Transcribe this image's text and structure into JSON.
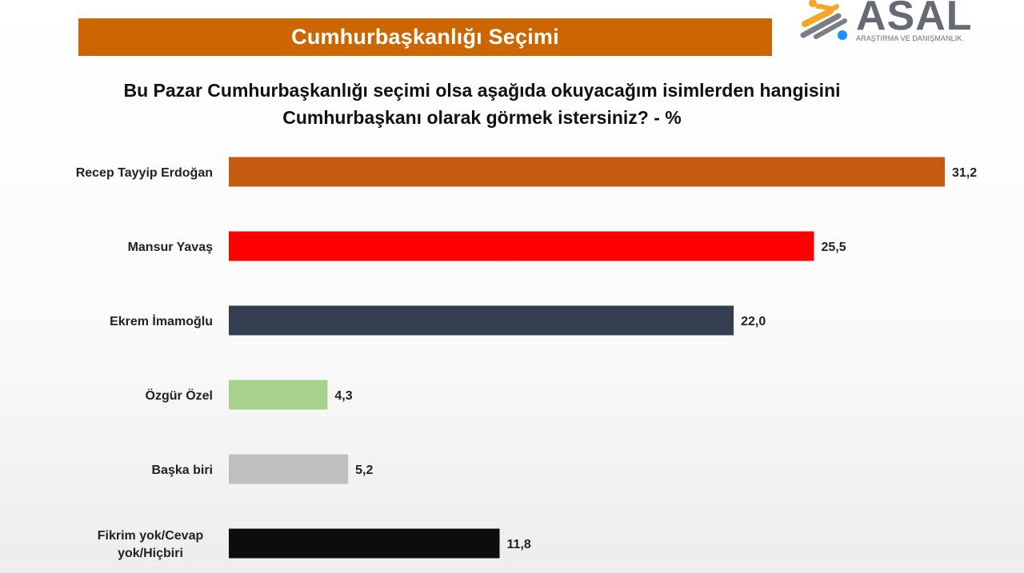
{
  "banner": {
    "title": "Cumhurbaşkanlığı Seçimi"
  },
  "logo": {
    "word": "ASAL",
    "subtitle": "ARAŞTIRMA VE DANIŞMANLIK"
  },
  "question": {
    "line1": "Bu Pazar Cumhurbaşkanlığı seçimi olsa aşağıda okuyacağım isimlerden hangisini",
    "line2": "Cumhurbaşkanı olarak görmek istersiniz? - %"
  },
  "chart_data": {
    "type": "bar",
    "orientation": "horizontal",
    "categories": [
      [
        "Recep Tayyip Erdoğan"
      ],
      [
        "Mansur Yavaş"
      ],
      [
        "Ekrem İmamoğlu"
      ],
      [
        "Özgür Özel"
      ],
      [
        "Başka biri"
      ],
      [
        "Fikrim yok/Cevap",
        "yok/Hiçbiri"
      ]
    ],
    "values": [
      31.2,
      25.5,
      22.0,
      4.3,
      5.2,
      11.8
    ],
    "value_labels": [
      "31,2",
      "25,5",
      "22,0",
      "4,3",
      "5,2",
      "11,8"
    ],
    "colors": [
      "#c55a11",
      "#ff0000",
      "#333f50",
      "#a9d18e",
      "#bfbfbf",
      "#0d0d0d"
    ],
    "xlim": [
      0,
      31.2
    ],
    "grid": false,
    "legend": "none"
  }
}
